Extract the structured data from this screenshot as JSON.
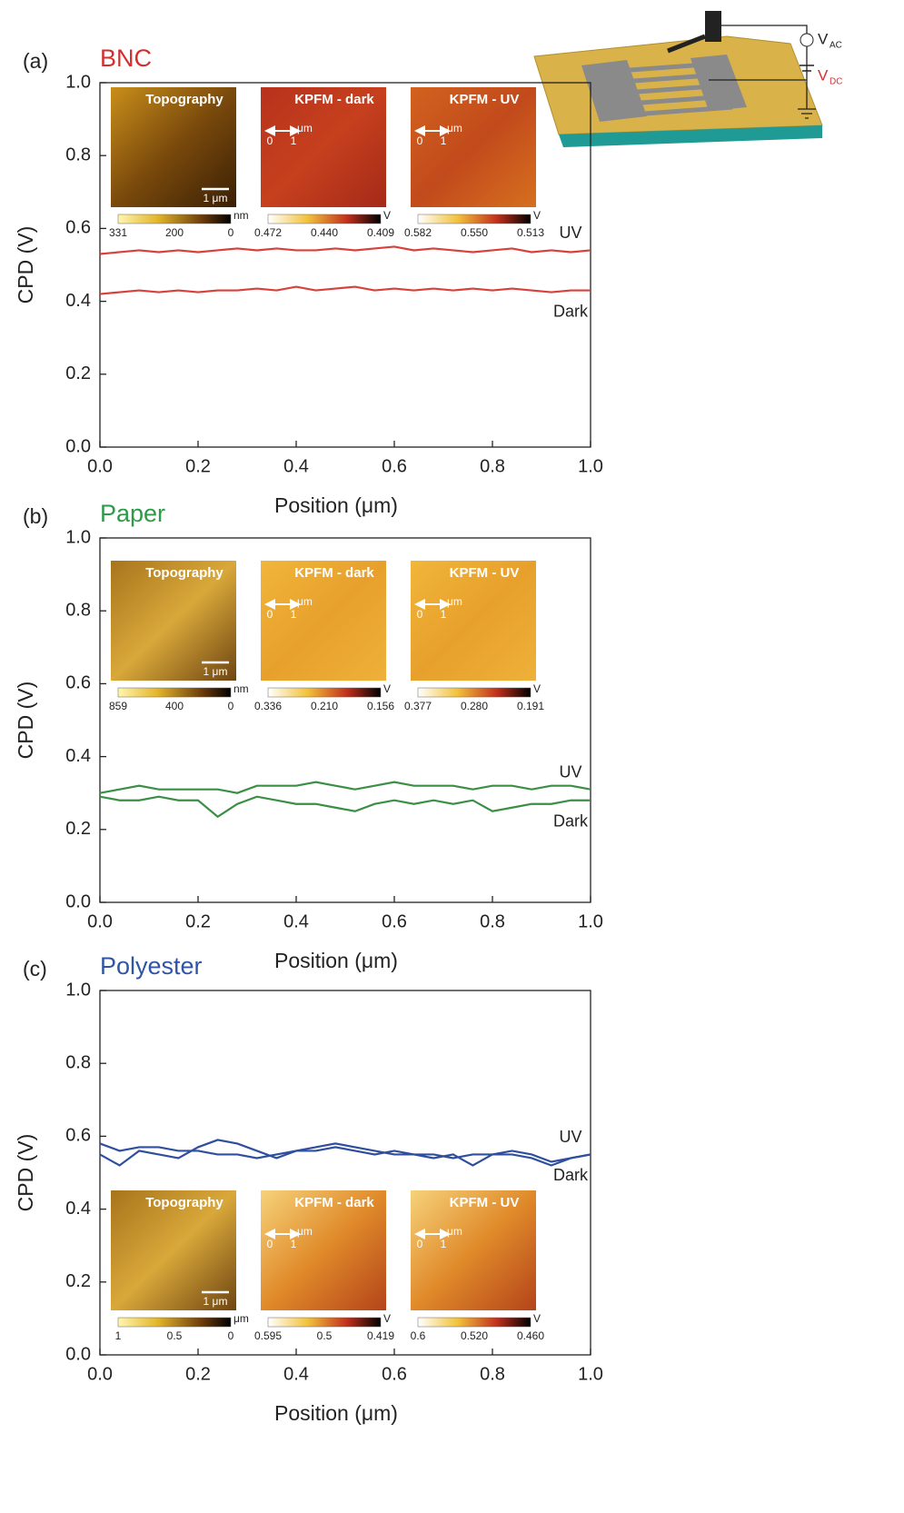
{
  "chart_data": [
    {
      "type": "line",
      "panel_label": "(a)",
      "title": "BNC",
      "title_color": "#d32f2f",
      "x_label": "Position (μm)",
      "y_label": "CPD (V)",
      "xlim": [
        0,
        1
      ],
      "ylim": [
        0,
        1
      ],
      "xticks": [
        {
          "value": 0,
          "label": "0.0"
        },
        0.2,
        0.4,
        0.6,
        0.8,
        {
          "value": 1,
          "label": "1.0"
        }
      ],
      "yticks": [
        {
          "value": 0,
          "label": "0.0"
        },
        0.2,
        0.4,
        0.6,
        0.8,
        {
          "value": 1,
          "label": "1.0"
        }
      ],
      "x": [
        0,
        0.04,
        0.08,
        0.12,
        0.16,
        0.2,
        0.24,
        0.28,
        0.32,
        0.36,
        0.4,
        0.44,
        0.48,
        0.52,
        0.56,
        0.6,
        0.64,
        0.68,
        0.72,
        0.76,
        0.8,
        0.84,
        0.88,
        0.92,
        0.96,
        1
      ],
      "series": [
        {
          "name": "UV",
          "color": "#d9403a",
          "values": [
            0.53,
            0.535,
            0.54,
            0.535,
            0.54,
            0.535,
            0.54,
            0.545,
            0.54,
            0.545,
            0.54,
            0.54,
            0.545,
            0.54,
            0.545,
            0.55,
            0.54,
            0.545,
            0.54,
            0.535,
            0.54,
            0.545,
            0.535,
            0.54,
            0.535,
            0.54
          ]
        },
        {
          "name": "Dark",
          "color": "#d9403a",
          "values": [
            0.42,
            0.425,
            0.43,
            0.425,
            0.43,
            0.425,
            0.43,
            0.43,
            0.435,
            0.43,
            0.44,
            0.43,
            0.435,
            0.44,
            0.43,
            0.435,
            0.43,
            0.435,
            0.43,
            0.435,
            0.43,
            0.435,
            0.43,
            0.425,
            0.43,
            0.43
          ]
        }
      ],
      "insets": [
        {
          "title": "Topography",
          "scale_label": "1 μm",
          "colorbar_labels": [
            "331",
            "200",
            "0"
          ],
          "unit": "nm"
        },
        {
          "title": "KPFM - dark",
          "arrow_labels": [
            "0",
            "1",
            "μm"
          ],
          "colorbar_labels": [
            "0.472",
            "0.440",
            "0.409"
          ],
          "unit": "V"
        },
        {
          "title": "KPFM - UV",
          "arrow_labels": [
            "0",
            "1",
            "μm"
          ],
          "colorbar_labels": [
            "0.582",
            "0.550",
            "0.513"
          ],
          "unit": "V"
        }
      ],
      "schematic": {
        "labels": [
          {
            "main": "V",
            "sub": "AC"
          },
          {
            "main": "V",
            "sub": "DC"
          }
        ]
      }
    },
    {
      "type": "line",
      "panel_label": "(b)",
      "title": "Paper",
      "title_color": "#2e9a48",
      "x_label": "Position (μm)",
      "y_label": "CPD (V)",
      "xlim": [
        0,
        1
      ],
      "ylim": [
        0,
        1
      ],
      "xticks": [
        {
          "value": 0,
          "label": "0.0"
        },
        0.2,
        0.4,
        0.6,
        0.8,
        {
          "value": 1,
          "label": "1.0"
        }
      ],
      "yticks": [
        {
          "value": 0,
          "label": "0.0"
        },
        0.2,
        0.4,
        0.6,
        0.8,
        {
          "value": 1,
          "label": "1.0"
        }
      ],
      "x": [
        0,
        0.04,
        0.08,
        0.12,
        0.16,
        0.2,
        0.24,
        0.28,
        0.32,
        0.36,
        0.4,
        0.44,
        0.48,
        0.52,
        0.56,
        0.6,
        0.64,
        0.68,
        0.72,
        0.76,
        0.8,
        0.84,
        0.88,
        0.92,
        0.96,
        1
      ],
      "series": [
        {
          "name": "UV",
          "color": "#3a8f45",
          "values": [
            0.3,
            0.31,
            0.32,
            0.31,
            0.31,
            0.31,
            0.31,
            0.3,
            0.32,
            0.32,
            0.32,
            0.33,
            0.32,
            0.31,
            0.32,
            0.33,
            0.32,
            0.32,
            0.32,
            0.31,
            0.32,
            0.32,
            0.31,
            0.32,
            0.32,
            0.31
          ]
        },
        {
          "name": "Dark",
          "color": "#3a8f45",
          "values": [
            0.29,
            0.28,
            0.28,
            0.29,
            0.28,
            0.28,
            0.235,
            0.27,
            0.29,
            0.28,
            0.27,
            0.27,
            0.26,
            0.25,
            0.27,
            0.28,
            0.27,
            0.28,
            0.27,
            0.28,
            0.25,
            0.26,
            0.27,
            0.27,
            0.28,
            0.28
          ]
        }
      ],
      "insets": [
        {
          "title": "Topography",
          "scale_label": "1 μm",
          "colorbar_labels": [
            "859",
            "400",
            "0"
          ],
          "unit": "nm"
        },
        {
          "title": "KPFM - dark",
          "arrow_labels": [
            "0",
            "1",
            "μm"
          ],
          "colorbar_labels": [
            "0.336",
            "0.210",
            "0.156"
          ],
          "unit": "V"
        },
        {
          "title": "KPFM - UV",
          "arrow_labels": [
            "0",
            "1",
            "μm"
          ],
          "colorbar_labels": [
            "0.377",
            "0.280",
            "0.191"
          ],
          "unit": "V"
        }
      ]
    },
    {
      "type": "line",
      "panel_label": "(c)",
      "title": "Polyester",
      "title_color": "#2f55a4",
      "x_label": "Position (μm)",
      "y_label": "CPD (V)",
      "xlim": [
        0,
        1
      ],
      "ylim": [
        0,
        1
      ],
      "xticks": [
        {
          "value": 0,
          "label": "0.0"
        },
        0.2,
        0.4,
        0.6,
        0.8,
        {
          "value": 1,
          "label": "1.0"
        }
      ],
      "yticks": [
        {
          "value": 0,
          "label": "0.0"
        },
        0.2,
        0.4,
        0.6,
        0.8,
        {
          "value": 1,
          "label": "1.0"
        }
      ],
      "x": [
        0,
        0.04,
        0.08,
        0.12,
        0.16,
        0.2,
        0.24,
        0.28,
        0.32,
        0.36,
        0.4,
        0.44,
        0.48,
        0.52,
        0.56,
        0.6,
        0.64,
        0.68,
        0.72,
        0.76,
        0.8,
        0.84,
        0.88,
        0.92,
        0.96,
        1
      ],
      "series": [
        {
          "name": "UV",
          "color": "#2f4f9e",
          "values": [
            0.58,
            0.56,
            0.57,
            0.57,
            0.56,
            0.56,
            0.55,
            0.55,
            0.54,
            0.55,
            0.56,
            0.56,
            0.57,
            0.56,
            0.55,
            0.56,
            0.55,
            0.55,
            0.54,
            0.55,
            0.55,
            0.56,
            0.55,
            0.53,
            0.54,
            0.55
          ]
        },
        {
          "name": "Dark",
          "color": "#2f4f9e",
          "values": [
            0.55,
            0.52,
            0.56,
            0.55,
            0.54,
            0.57,
            0.59,
            0.58,
            0.56,
            0.54,
            0.56,
            0.57,
            0.58,
            0.57,
            0.56,
            0.55,
            0.55,
            0.54,
            0.55,
            0.52,
            0.55,
            0.55,
            0.54,
            0.52,
            0.54,
            0.55
          ]
        }
      ],
      "insets": [
        {
          "title": "Topography",
          "scale_label": "1 μm",
          "colorbar_labels": [
            "1",
            "0.5",
            "0"
          ],
          "unit": "μm"
        },
        {
          "title": "KPFM - dark",
          "arrow_labels": [
            "0",
            "1",
            "μm"
          ],
          "colorbar_labels": [
            "0.595",
            "0.5",
            "0.419"
          ],
          "unit": "V"
        },
        {
          "title": "KPFM - UV",
          "arrow_labels": [
            "0",
            "1",
            "μm"
          ],
          "colorbar_labels": [
            "0.6",
            "0.520",
            "0.460"
          ],
          "unit": "V"
        }
      ]
    }
  ]
}
